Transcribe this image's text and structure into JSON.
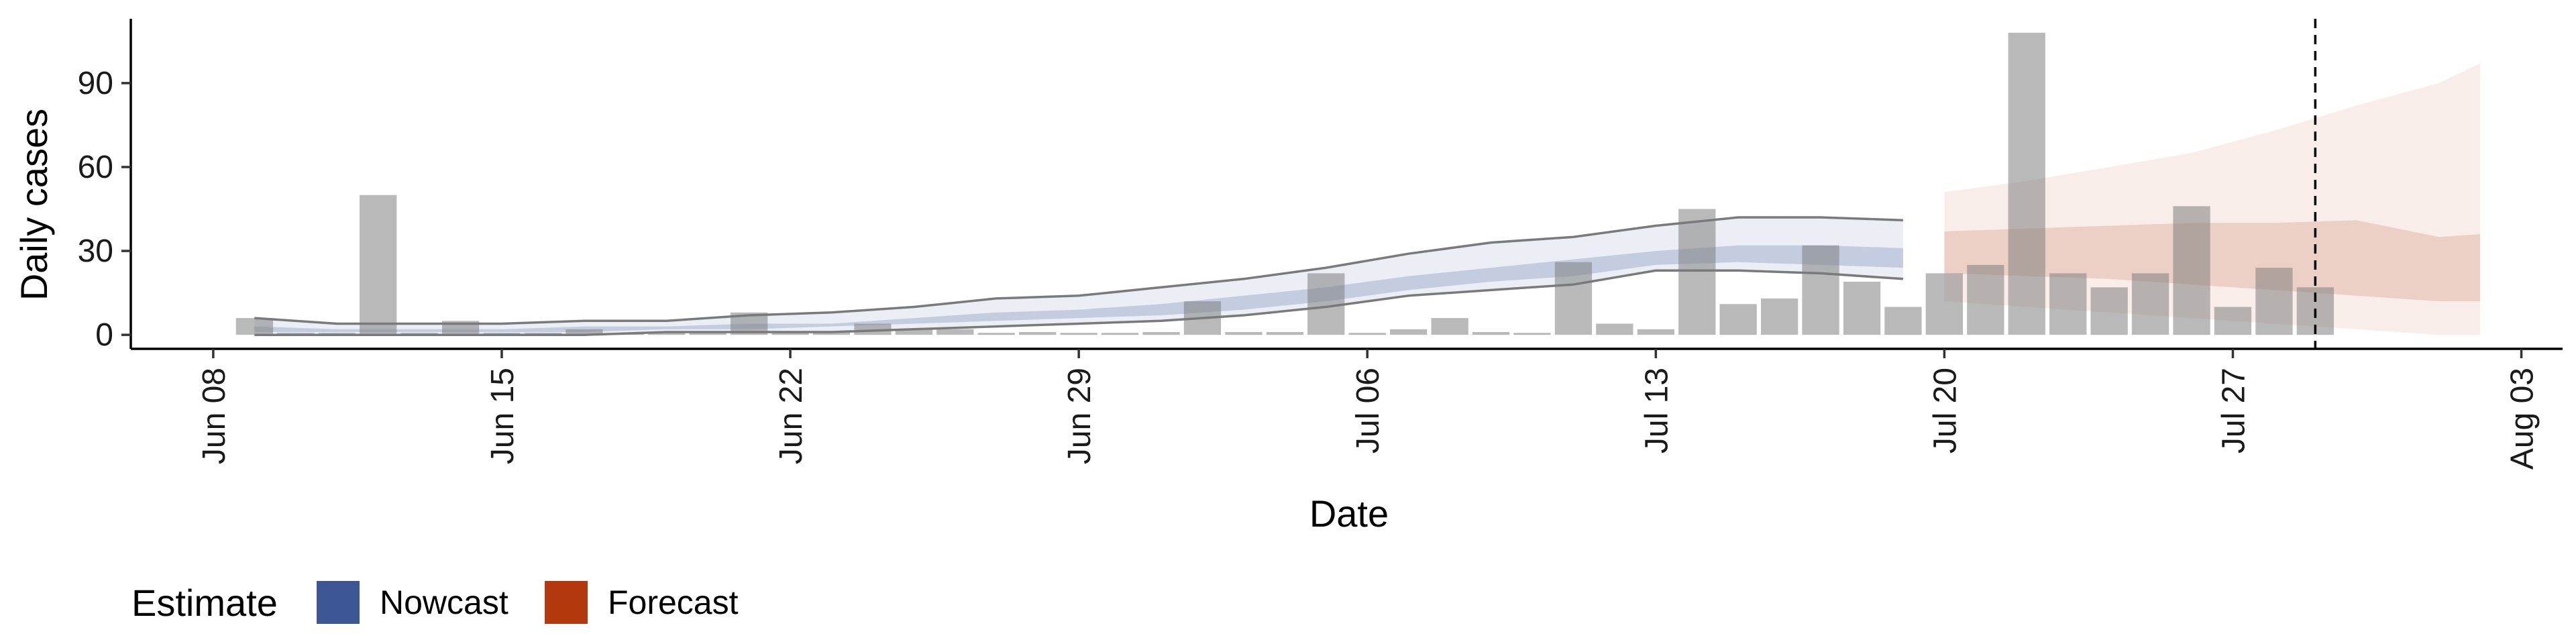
{
  "chart_data": {
    "type": "bar",
    "xlabel": "Date",
    "ylabel": "Daily cases",
    "ylim": [
      -5,
      113
    ],
    "y_ticks": [
      0,
      30,
      60,
      90
    ],
    "x_ticks": [
      "2020-06-08",
      "2020-06-15",
      "2020-06-22",
      "2020-06-29",
      "2020-07-06",
      "2020-07-13",
      "2020-07-20",
      "2020-07-27",
      "2020-08-03"
    ],
    "x_tick_labels": [
      "Jun 08",
      "Jun 15",
      "Jun 22",
      "Jun 29",
      "Jul 06",
      "Jul 13",
      "Jul 20",
      "Jul 27",
      "Aug 03"
    ],
    "x_range": [
      "2020-06-06",
      "2020-08-04"
    ],
    "grid": false,
    "reference_line": {
      "date": "2020-07-29",
      "style": "dashed"
    },
    "bars": {
      "dates": [
        "2020-06-09",
        "2020-06-10",
        "2020-06-11",
        "2020-06-12",
        "2020-06-13",
        "2020-06-14",
        "2020-06-15",
        "2020-06-16",
        "2020-06-17",
        "2020-06-18",
        "2020-06-19",
        "2020-06-20",
        "2020-06-21",
        "2020-06-22",
        "2020-06-23",
        "2020-06-24",
        "2020-06-25",
        "2020-06-26",
        "2020-06-27",
        "2020-06-28",
        "2020-06-29",
        "2020-06-30",
        "2020-07-01",
        "2020-07-02",
        "2020-07-03",
        "2020-07-04",
        "2020-07-05",
        "2020-07-06",
        "2020-07-07",
        "2020-07-08",
        "2020-07-09",
        "2020-07-10",
        "2020-07-11",
        "2020-07-12",
        "2020-07-13",
        "2020-07-14",
        "2020-07-15",
        "2020-07-16",
        "2020-07-17",
        "2020-07-18",
        "2020-07-19",
        "2020-07-20",
        "2020-07-21",
        "2020-07-22",
        "2020-07-23",
        "2020-07-24",
        "2020-07-25",
        "2020-07-26",
        "2020-07-27",
        "2020-07-28",
        "2020-07-29"
      ],
      "values": [
        6,
        0,
        0,
        50,
        0,
        5,
        0,
        0,
        2,
        0,
        0,
        0,
        8,
        0,
        1,
        4,
        2,
        2,
        0,
        1,
        0,
        0,
        1,
        12,
        1,
        1,
        22,
        0,
        2,
        6,
        1,
        0,
        26,
        4,
        2,
        45,
        11,
        13,
        32,
        19,
        10,
        22,
        25,
        108,
        22,
        17,
        22,
        46,
        10,
        24,
        17
      ]
    },
    "series": [
      {
        "name": "Nowcast",
        "color": "#3C5695",
        "dates": [
          "2020-06-09",
          "2020-06-11",
          "2020-06-13",
          "2020-06-15",
          "2020-06-17",
          "2020-06-19",
          "2020-06-21",
          "2020-06-23",
          "2020-06-25",
          "2020-06-27",
          "2020-06-29",
          "2020-07-01",
          "2020-07-03",
          "2020-07-05",
          "2020-07-07",
          "2020-07-09",
          "2020-07-11",
          "2020-07-13",
          "2020-07-15",
          "2020-07-17",
          "2020-07-19"
        ],
        "outer_upper": [
          6,
          4,
          4,
          4,
          5,
          5,
          7,
          8,
          10,
          13,
          14,
          17,
          20,
          24,
          29,
          33,
          35,
          39,
          42,
          42,
          41
        ],
        "outer_lower": [
          0,
          0,
          0,
          0,
          0,
          1,
          1,
          1,
          2,
          3,
          4,
          5,
          7,
          10,
          14,
          16,
          18,
          23,
          23,
          22,
          20
        ],
        "inner_upper": [
          3,
          2,
          2,
          2,
          3,
          3,
          4,
          4,
          6,
          8,
          9,
          11,
          14,
          17,
          21,
          24,
          27,
          30,
          32,
          32,
          31
        ],
        "inner_lower": [
          1,
          1,
          1,
          1,
          1,
          2,
          2,
          3,
          4,
          5,
          6,
          7,
          9,
          12,
          16,
          19,
          21,
          25,
          26,
          25,
          24
        ]
      },
      {
        "name": "Forecast",
        "color": "#B4380E",
        "dates": [
          "2020-07-20",
          "2020-07-22",
          "2020-07-24",
          "2020-07-26",
          "2020-07-28",
          "2020-07-30",
          "2020-08-01",
          "2020-08-02"
        ],
        "outer_upper": [
          51,
          55,
          60,
          65,
          73,
          82,
          90,
          97
        ],
        "outer_lower": [
          12,
          10,
          8,
          6,
          4,
          2,
          0,
          0
        ],
        "inner_upper": [
          37,
          38,
          39,
          40,
          40,
          41,
          35,
          36
        ],
        "inner_lower": [
          22,
          21,
          20,
          18,
          16,
          14,
          12,
          12
        ]
      }
    ],
    "legend": {
      "position": "bottom-left",
      "title": "Estimate",
      "items": [
        {
          "label": "Nowcast",
          "color": "#3C5695"
        },
        {
          "label": "Forecast",
          "color": "#B4380E"
        }
      ]
    }
  }
}
